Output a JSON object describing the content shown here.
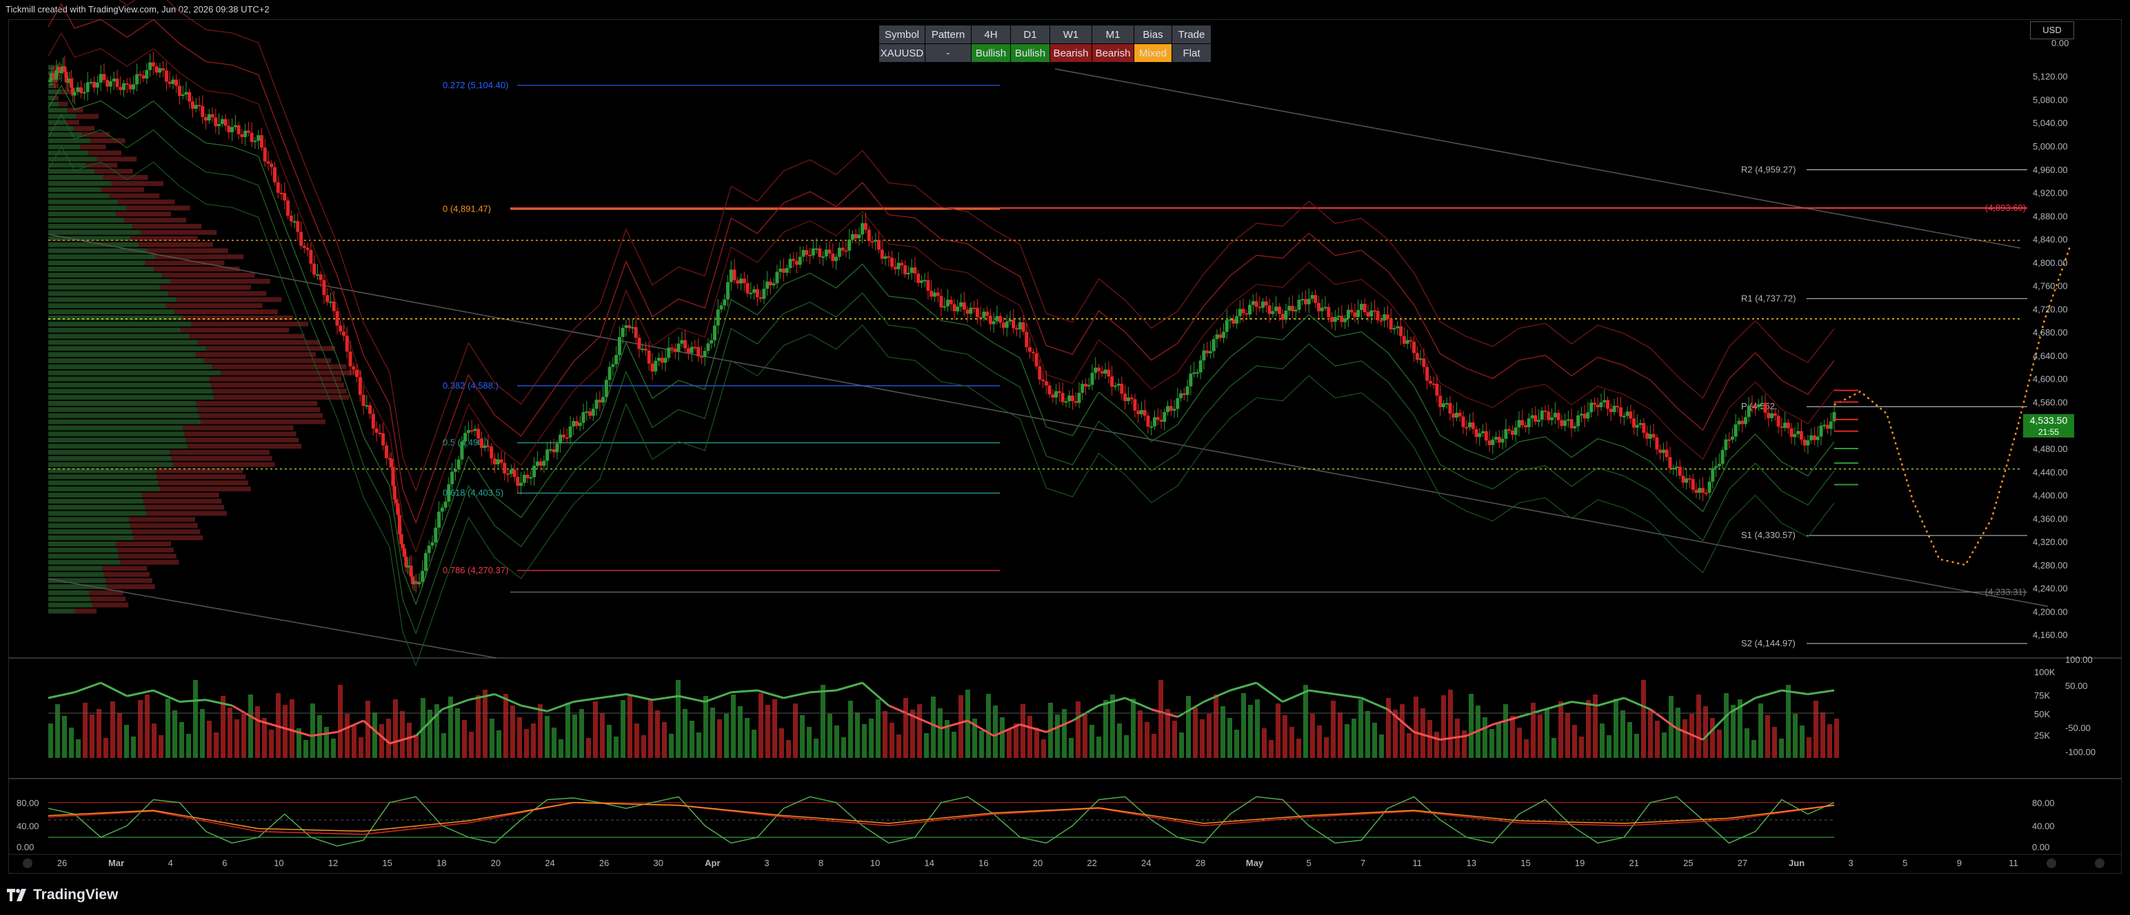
{
  "header": {
    "credit": "Tickmill created with TradingView.com, Jun 02, 2026 09:38 UTC+2"
  },
  "summary_table": {
    "headers": [
      "Symbol",
      "Pattern",
      "4H",
      "D1",
      "W1",
      "M1",
      "Bias",
      "Trade"
    ],
    "cells": [
      {
        "text": "XAUUSD",
        "state": "neutral"
      },
      {
        "text": "-",
        "state": "neutral"
      },
      {
        "text": "Bullish",
        "state": "bullish"
      },
      {
        "text": "Bullish",
        "state": "bullish"
      },
      {
        "text": "Bearish",
        "state": "bearish"
      },
      {
        "text": "Bearish",
        "state": "bearish"
      },
      {
        "text": "Mixed",
        "state": "mixed"
      },
      {
        "text": "Flat",
        "state": "neutral"
      }
    ]
  },
  "currency_label": "USD",
  "price_tag": {
    "price": "4,533.50",
    "countdown": "21:55"
  },
  "brand": "TradingView",
  "colors": {
    "bull": "#2e9b3a",
    "bear": "#c42b2b",
    "fib_orange": "#f7931e",
    "fib_blue": "#2962ff",
    "fib_green": "#26a69a",
    "fib_red": "#f23645",
    "pivot": "#b2b5be"
  },
  "chart_data": [
    {
      "type": "candlestick",
      "symbol": "XAUUSD",
      "ylim": [
        4120,
        5180
      ],
      "y_ticks": [
        "5,120.00",
        "5,080.00",
        "5,040.00",
        "5,000.00",
        "4,960.00",
        "4,920.00",
        "4,880.00",
        "4,840.00",
        "4,800.00",
        "4,760.00",
        "4,720.00",
        "4,680.00",
        "4,640.00",
        "4,600.00",
        "4,560.00",
        "4,520.00",
        "4,480.00",
        "4,440.00",
        "4,400.00",
        "4,360.00",
        "4,320.00",
        "4,280.00",
        "4,240.00",
        "4,200.00",
        "4,160.00"
      ],
      "y_top_label": "0.00",
      "y_tick_values": [
        5120,
        5080,
        5040,
        5000,
        4960,
        4920,
        4880,
        4840,
        4800,
        4760,
        4720,
        4680,
        4640,
        4600,
        4560,
        4520,
        4480,
        4440,
        4400,
        4360,
        4320,
        4280,
        4240,
        4200,
        4160
      ],
      "x_ticks": [
        "26",
        "Mar",
        "4",
        "6",
        "10",
        "12",
        "15",
        "18",
        "20",
        "24",
        "26",
        "30",
        "Apr",
        "3",
        "8",
        "10",
        "14",
        "16",
        "20",
        "22",
        "24",
        "28",
        "May",
        "5",
        "7",
        "11",
        "13",
        "15",
        "19",
        "21",
        "25",
        "27",
        "Jun",
        "3",
        "5",
        "9",
        "11"
      ],
      "close_path": [
        [
          0,
          5110
        ],
        [
          0.5,
          5135
        ],
        [
          1,
          5090
        ],
        [
          2,
          5115
        ],
        [
          3,
          5100
        ],
        [
          4,
          5140
        ],
        [
          5,
          5095
        ],
        [
          6,
          5050
        ],
        [
          7,
          5030
        ],
        [
          8,
          5010
        ],
        [
          9,
          4900
        ],
        [
          10,
          4800
        ],
        [
          11,
          4700
        ],
        [
          12,
          4560
        ],
        [
          13,
          4460
        ],
        [
          13.5,
          4300
        ],
        [
          14,
          4240
        ],
        [
          15,
          4380
        ],
        [
          16,
          4520
        ],
        [
          17,
          4460
        ],
        [
          18,
          4420
        ],
        [
          19,
          4470
        ],
        [
          20,
          4520
        ],
        [
          21,
          4560
        ],
        [
          22,
          4700
        ],
        [
          23,
          4620
        ],
        [
          24,
          4660
        ],
        [
          25,
          4640
        ],
        [
          26,
          4780
        ],
        [
          27,
          4740
        ],
        [
          28,
          4790
        ],
        [
          29,
          4820
        ],
        [
          30,
          4810
        ],
        [
          31,
          4860
        ],
        [
          32,
          4800
        ],
        [
          33,
          4780
        ],
        [
          34,
          4730
        ],
        [
          35,
          4720
        ],
        [
          36,
          4700
        ],
        [
          37,
          4690
        ],
        [
          38,
          4580
        ],
        [
          39,
          4560
        ],
        [
          40,
          4620
        ],
        [
          41,
          4570
        ],
        [
          42,
          4520
        ],
        [
          43,
          4560
        ],
        [
          44,
          4640
        ],
        [
          45,
          4700
        ],
        [
          46,
          4730
        ],
        [
          47,
          4710
        ],
        [
          48,
          4740
        ],
        [
          49,
          4700
        ],
        [
          50,
          4720
        ],
        [
          51,
          4700
        ],
        [
          52,
          4650
        ],
        [
          53,
          4560
        ],
        [
          54,
          4520
        ],
        [
          55,
          4490
        ],
        [
          56,
          4520
        ],
        [
          57,
          4540
        ],
        [
          58,
          4520
        ],
        [
          59,
          4560
        ],
        [
          60,
          4540
        ],
        [
          61,
          4500
        ],
        [
          62,
          4440
        ],
        [
          63,
          4400
        ],
        [
          64,
          4500
        ],
        [
          65,
          4560
        ],
        [
          66,
          4520
        ],
        [
          67,
          4490
        ],
        [
          68,
          4533.5
        ]
      ],
      "price_levels": [
        {
          "label": "0.272 (5,104.40)",
          "value": 5104.4,
          "kind": "fib_blue"
        },
        {
          "label": "0 (4,891.47)",
          "value": 4891.47,
          "kind": "fib_orange"
        },
        {
          "label": "0.382 (4,588.)",
          "value": 4588,
          "kind": "fib_blue"
        },
        {
          "label": "0.5 (4,490.)",
          "value": 4490,
          "kind": "fib_green"
        },
        {
          "label": "0.618 (4,403.5)",
          "value": 4403.5,
          "kind": "fib_green"
        },
        {
          "label": "0.786 (4,270.37)",
          "value": 4270.37,
          "kind": "fib_red"
        },
        {
          "label": "R2 (4,959.27)",
          "value": 4959.27,
          "kind": "pivot"
        },
        {
          "label": "R1 (4,737.72)",
          "value": 4737.72,
          "kind": "pivot"
        },
        {
          "label": "P (4,552.",
          "value": 4552,
          "kind": "pivot"
        },
        {
          "label": "S1 (4,330.57)",
          "value": 4330.57,
          "kind": "pivot"
        },
        {
          "label": "S2 (4,144.97)",
          "value": 4144.97,
          "kind": "pivot"
        },
        {
          "label": "(4,893.60)",
          "value": 4893.6,
          "kind": "resistance_red"
        },
        {
          "label": "(4,233.31)",
          "value": 4233.31,
          "kind": "support_grey"
        }
      ],
      "dotted_levels": [
        4838,
        4703,
        4445
      ],
      "projection_path": [
        [
          68,
          4555
        ],
        [
          69,
          4578
        ],
        [
          70,
          4540
        ],
        [
          71,
          4390
        ],
        [
          72,
          4290
        ],
        [
          73,
          4280
        ],
        [
          74,
          4360
        ],
        [
          75,
          4520
        ],
        [
          76,
          4700
        ],
        [
          77,
          4830
        ]
      ]
    },
    {
      "type": "bar",
      "name_hint": "volume_oscillator",
      "y_ticks": [
        "100.00",
        "100K",
        "50.00",
        "75K",
        "50K",
        "-50.00",
        "25K",
        "-100.00"
      ],
      "oscillator_path": [
        [
          0,
          40
        ],
        [
          1,
          55
        ],
        [
          2,
          80
        ],
        [
          3,
          45
        ],
        [
          4,
          60
        ],
        [
          5,
          30
        ],
        [
          6,
          35
        ],
        [
          7,
          20
        ],
        [
          8,
          -20
        ],
        [
          9,
          -40
        ],
        [
          10,
          -60
        ],
        [
          11,
          -50
        ],
        [
          12,
          -20
        ],
        [
          13,
          -80
        ],
        [
          14,
          -60
        ],
        [
          15,
          10
        ],
        [
          16,
          35
        ],
        [
          17,
          50
        ],
        [
          18,
          20
        ],
        [
          19,
          5
        ],
        [
          20,
          30
        ],
        [
          21,
          40
        ],
        [
          22,
          50
        ],
        [
          23,
          35
        ],
        [
          24,
          45
        ],
        [
          25,
          30
        ],
        [
          26,
          55
        ],
        [
          27,
          60
        ],
        [
          28,
          40
        ],
        [
          29,
          55
        ],
        [
          30,
          60
        ],
        [
          31,
          80
        ],
        [
          32,
          20
        ],
        [
          33,
          -10
        ],
        [
          34,
          -40
        ],
        [
          35,
          -20
        ],
        [
          36,
          -60
        ],
        [
          37,
          -30
        ],
        [
          38,
          -50
        ],
        [
          39,
          -20
        ],
        [
          40,
          20
        ],
        [
          41,
          40
        ],
        [
          42,
          10
        ],
        [
          43,
          -10
        ],
        [
          44,
          30
        ],
        [
          45,
          60
        ],
        [
          46,
          80
        ],
        [
          47,
          30
        ],
        [
          48,
          60
        ],
        [
          49,
          50
        ],
        [
          50,
          40
        ],
        [
          51,
          10
        ],
        [
          52,
          -50
        ],
        [
          53,
          -70
        ],
        [
          54,
          -60
        ],
        [
          55,
          -30
        ],
        [
          56,
          -10
        ],
        [
          57,
          10
        ],
        [
          58,
          30
        ],
        [
          59,
          20
        ],
        [
          60,
          40
        ],
        [
          61,
          10
        ],
        [
          62,
          -40
        ],
        [
          63,
          -70
        ],
        [
          64,
          0
        ],
        [
          65,
          40
        ],
        [
          66,
          60
        ],
        [
          67,
          50
        ],
        [
          68,
          60
        ]
      ]
    },
    {
      "type": "line",
      "name_hint": "stochastic",
      "ylim": [
        0,
        100
      ],
      "y_ticks": [
        "80.00",
        "40.00",
        "0.00"
      ],
      "right_ticks": [
        "80.00",
        "40.00",
        "0.00"
      ],
      "k_path": [
        [
          0,
          70
        ],
        [
          1,
          60
        ],
        [
          2,
          20
        ],
        [
          3,
          40
        ],
        [
          4,
          85
        ],
        [
          5,
          80
        ],
        [
          6,
          30
        ],
        [
          7,
          10
        ],
        [
          8,
          20
        ],
        [
          9,
          60
        ],
        [
          10,
          20
        ],
        [
          11,
          5
        ],
        [
          12,
          15
        ],
        [
          13,
          80
        ],
        [
          14,
          90
        ],
        [
          15,
          40
        ],
        [
          16,
          20
        ],
        [
          17,
          10
        ],
        [
          18,
          50
        ],
        [
          19,
          85
        ],
        [
          20,
          88
        ],
        [
          21,
          80
        ],
        [
          22,
          70
        ],
        [
          23,
          80
        ],
        [
          24,
          90
        ],
        [
          25,
          40
        ],
        [
          26,
          10
        ],
        [
          27,
          20
        ],
        [
          28,
          70
        ],
        [
          29,
          90
        ],
        [
          30,
          80
        ],
        [
          31,
          40
        ],
        [
          32,
          10
        ],
        [
          33,
          20
        ],
        [
          34,
          80
        ],
        [
          35,
          90
        ],
        [
          36,
          60
        ],
        [
          37,
          20
        ],
        [
          38,
          10
        ],
        [
          39,
          40
        ],
        [
          40,
          85
        ],
        [
          41,
          90
        ],
        [
          42,
          50
        ],
        [
          43,
          20
        ],
        [
          44,
          10
        ],
        [
          45,
          60
        ],
        [
          46,
          90
        ],
        [
          47,
          85
        ],
        [
          48,
          40
        ],
        [
          49,
          10
        ],
        [
          50,
          15
        ],
        [
          51,
          70
        ],
        [
          52,
          90
        ],
        [
          53,
          50
        ],
        [
          54,
          20
        ],
        [
          55,
          10
        ],
        [
          56,
          60
        ],
        [
          57,
          85
        ],
        [
          58,
          40
        ],
        [
          59,
          10
        ],
        [
          60,
          20
        ],
        [
          61,
          80
        ],
        [
          62,
          90
        ],
        [
          63,
          50
        ],
        [
          64,
          10
        ],
        [
          65,
          30
        ],
        [
          66,
          85
        ],
        [
          67,
          60
        ],
        [
          68,
          80
        ]
      ],
      "d_path": [
        [
          0,
          55
        ],
        [
          4,
          65
        ],
        [
          8,
          30
        ],
        [
          12,
          25
        ],
        [
          16,
          45
        ],
        [
          20,
          80
        ],
        [
          24,
          75
        ],
        [
          28,
          55
        ],
        [
          32,
          40
        ],
        [
          36,
          60
        ],
        [
          40,
          70
        ],
        [
          44,
          40
        ],
        [
          48,
          55
        ],
        [
          52,
          65
        ],
        [
          56,
          45
        ],
        [
          60,
          40
        ],
        [
          64,
          50
        ],
        [
          68,
          75
        ]
      ]
    }
  ]
}
